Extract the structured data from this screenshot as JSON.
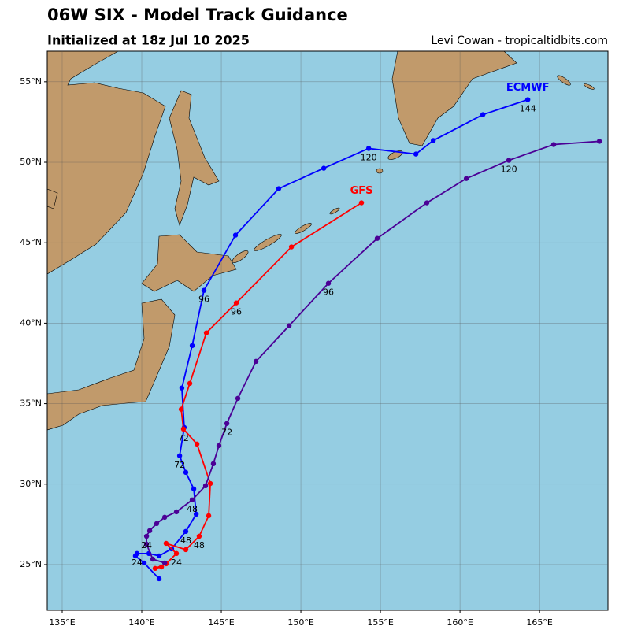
{
  "chart_data": {
    "type": "line",
    "title": "06W SIX - Model Track Guidance",
    "subtitle": "Initialized at 18z Jul 10 2025",
    "credit": "Levi Cowan - tropicaltidbits.com",
    "xlim": [
      134.06,
      169.3
    ],
    "ylim": [
      22.16,
      56.9
    ],
    "xticks": [
      {
        "value": 135,
        "label": "135°E"
      },
      {
        "value": 140,
        "label": "140°E"
      },
      {
        "value": 145,
        "label": "145°E"
      },
      {
        "value": 150,
        "label": "150°E"
      },
      {
        "value": 155,
        "label": "155°E"
      },
      {
        "value": 160,
        "label": "160°E"
      },
      {
        "value": 165,
        "label": "165°E"
      }
    ],
    "yticks": [
      {
        "value": 25,
        "label": "25°N"
      },
      {
        "value": 30,
        "label": "30°N"
      },
      {
        "value": 35,
        "label": "35°N"
      },
      {
        "value": 40,
        "label": "40°N"
      },
      {
        "value": 45,
        "label": "45°N"
      },
      {
        "value": 50,
        "label": "50°N"
      },
      {
        "value": 55,
        "label": "55°N"
      }
    ],
    "grid": true,
    "series": [
      {
        "name": "ECMWF",
        "color": "#0000ff",
        "x": [
          141.09,
          140.15,
          139.6,
          139.7,
          140.45,
          141.09,
          141.88,
          142.77,
          143.42,
          143.27,
          142.77,
          142.38,
          142.67,
          142.52,
          143.17,
          143.91,
          145.89,
          148.61,
          151.44,
          154.26,
          157.23,
          158.32,
          161.44,
          164.26
        ],
        "values": [
          24.12,
          25.1,
          25.54,
          25.69,
          25.69,
          25.54,
          25.98,
          27.06,
          28.13,
          29.7,
          30.73,
          31.76,
          33.52,
          35.97,
          38.61,
          42.04,
          45.47,
          48.36,
          49.63,
          50.86,
          50.51,
          51.35,
          52.96,
          53.89
        ],
        "point_labels": [
          null,
          null,
          null,
          "24",
          null,
          null,
          null,
          "48",
          null,
          null,
          null,
          "72",
          null,
          null,
          null,
          "96",
          null,
          null,
          null,
          "120",
          null,
          null,
          null,
          "144"
        ]
      },
      {
        "name": "GFS",
        "color": "#ff0000",
        "x": [
          141.24,
          140.84,
          141.53,
          142.18,
          141.53,
          142.77,
          143.61,
          144.21,
          144.31,
          143.47,
          142.62,
          142.48,
          143.02,
          144.06,
          145.94,
          149.41,
          153.81
        ],
        "values": [
          24.85,
          24.76,
          25.05,
          25.69,
          26.32,
          25.93,
          26.76,
          28.04,
          30.04,
          32.49,
          33.42,
          34.65,
          36.26,
          39.4,
          41.26,
          44.74,
          47.48
        ],
        "point_labels": [
          null,
          null,
          null,
          "24",
          null,
          null,
          "48",
          null,
          null,
          null,
          "72",
          null,
          null,
          null,
          "96",
          null,
          null
        ]
      },
      {
        "color": "#4b0096",
        "x": [
          141.44,
          140.69,
          140.3,
          140.3,
          140.5,
          140.94,
          141.44,
          142.18,
          143.17,
          144.01,
          144.5,
          144.85,
          145.35,
          146.04,
          147.18,
          149.26,
          151.73,
          154.8,
          157.92,
          160.4,
          163.07,
          165.89,
          168.76
        ],
        "values": [
          25.1,
          25.34,
          26.27,
          26.76,
          27.11,
          27.55,
          27.94,
          28.28,
          29.02,
          29.9,
          31.27,
          32.39,
          33.77,
          35.33,
          37.63,
          39.84,
          42.48,
          45.27,
          47.48,
          48.99,
          50.12,
          51.1,
          51.3
        ],
        "point_labels": [
          null,
          null,
          null,
          "24",
          null,
          null,
          null,
          null,
          "48",
          null,
          null,
          null,
          "72",
          null,
          null,
          null,
          "96",
          null,
          null,
          null,
          "120",
          null,
          null
        ]
      }
    ]
  }
}
